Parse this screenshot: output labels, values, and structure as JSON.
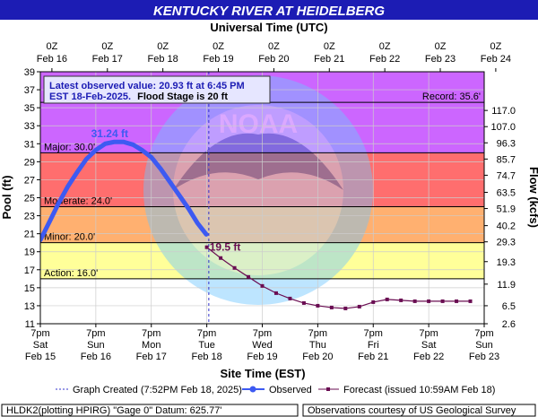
{
  "colors": {
    "title_bar": "#1c1cb4",
    "observed": "#3d5af2",
    "forecast": "#6a0d52",
    "major": "#cc66ff",
    "major_flood": "#ff6e6e",
    "moderate": "#ffb070",
    "minor": "#ffff99",
    "action": "#fafad2",
    "normal": "#ffffff"
  },
  "chart_data": {
    "type": "line",
    "title": "KENTUCKY RIVER AT HEIDELBERG",
    "top_axis_title": "Universal Time (UTC)",
    "bottom_axis_title": "Site Time (EST)",
    "ylabel": "Pool (ft)",
    "y2label": "Flow (kcfs)",
    "ylim": [
      11,
      39
    ],
    "xlim": [
      "Feb 15 7pm",
      "Feb 23 7pm"
    ],
    "y_ticks": [
      "11",
      "13",
      "15",
      "17",
      "19",
      "21",
      "23",
      "25",
      "27",
      "29",
      "31",
      "33",
      "35",
      "37",
      "39"
    ],
    "flow_ticks": [
      {
        "stage": 11.0,
        "label": "2.6"
      },
      {
        "stage": 13.0,
        "label": "6.5"
      },
      {
        "stage": 15.4,
        "label": "11.9"
      },
      {
        "stage": 17.9,
        "label": "19.3"
      },
      {
        "stage": 20.1,
        "label": "29.3"
      },
      {
        "stage": 21.9,
        "label": "40.2"
      },
      {
        "stage": 23.8,
        "label": "51.9"
      },
      {
        "stage": 25.6,
        "label": "63.5"
      },
      {
        "stage": 27.5,
        "label": "74.7"
      },
      {
        "stage": 29.3,
        "label": "85.7"
      },
      {
        "stage": 31.1,
        "label": "96.3"
      },
      {
        "stage": 32.9,
        "label": "107.0"
      },
      {
        "stage": 34.7,
        "label": "117.0"
      }
    ],
    "top_ticks": [
      {
        "line1": "0Z",
        "line2": "Feb 16"
      },
      {
        "line1": "0Z",
        "line2": "Feb 17"
      },
      {
        "line1": "0Z",
        "line2": "Feb 18"
      },
      {
        "line1": "0Z",
        "line2": "Feb 19"
      },
      {
        "line1": "0Z",
        "line2": "Feb 20"
      },
      {
        "line1": "0Z",
        "line2": "Feb 21"
      },
      {
        "line1": "0Z",
        "line2": "Feb 22"
      },
      {
        "line1": "0Z",
        "line2": "Feb 23"
      },
      {
        "line1": "0Z",
        "line2": "Feb 24"
      }
    ],
    "bottom_ticks": [
      {
        "line1": "7pm",
        "line2": "Sat",
        "line3": "Feb 15"
      },
      {
        "line1": "7pm",
        "line2": "Sun",
        "line3": "Feb 16"
      },
      {
        "line1": "7pm",
        "line2": "Mon",
        "line3": "Feb 17"
      },
      {
        "line1": "7pm",
        "line2": "Tue",
        "line3": "Feb 18"
      },
      {
        "line1": "7pm",
        "line2": "Wed",
        "line3": "Feb 19"
      },
      {
        "line1": "7pm",
        "line2": "Thu",
        "line3": "Feb 20"
      },
      {
        "line1": "7pm",
        "line2": "Fri",
        "line3": "Feb 21"
      },
      {
        "line1": "7pm",
        "line2": "Sat",
        "line3": "Feb 22"
      },
      {
        "line1": "7pm",
        "line2": "Sun",
        "line3": "Feb 23"
      }
    ],
    "flood_categories": [
      {
        "name": "Major",
        "label": "Major: 30.0'",
        "from": 30.0,
        "to": 39.0,
        "color": "#ff6e6e"
      },
      {
        "name": "Moderate",
        "label": "Moderate: 24.0'",
        "from": 24.0,
        "to": 30.0,
        "color": "#ffb070"
      },
      {
        "name": "Minor",
        "label": "Minor: 20.0'",
        "from": 20.0,
        "to": 24.0,
        "color": "#ffff99"
      },
      {
        "name": "Action",
        "label": "Action: 16.0'",
        "from": 16.0,
        "to": 20.0,
        "color": "#fafad2"
      }
    ],
    "record": {
      "label": "Record: 35.6'",
      "value": 35.6,
      "color": "#cc66ff"
    },
    "info_box": {
      "line1": "Latest observed value: 20.93 ft at 6:45 PM",
      "line2a": "EST 18-Feb-2025.",
      "line2b": "Flood Stage is 20 ft"
    },
    "peak_label": "31.24 ft",
    "peak": {
      "x": "Feb 16 2:00pm",
      "y": 31.24
    },
    "forecast_start_label": "19.5 ft",
    "forecast_start": {
      "x": "Feb 18 7pm",
      "y": 19.5
    },
    "graph_created_x": "Feb 18 7:52pm",
    "series": [
      {
        "name": "Observed",
        "x_days_from_feb15_7pm": [
          0.0,
          0.17,
          0.33,
          0.5,
          0.67,
          0.83,
          1.0,
          1.17,
          1.33,
          1.5,
          1.67,
          1.83,
          2.0,
          2.17,
          2.33,
          2.5,
          2.67,
          2.83,
          2.99
        ],
        "values": [
          20.3,
          22.4,
          24.4,
          26.3,
          27.9,
          29.3,
          30.3,
          31.0,
          31.2,
          31.2,
          30.9,
          30.3,
          29.5,
          28.2,
          26.8,
          25.3,
          23.8,
          22.2,
          20.93
        ]
      },
      {
        "name": "Forecast",
        "x_days_from_feb15_7pm": [
          3.0,
          3.25,
          3.5,
          3.75,
          4.0,
          4.25,
          4.5,
          4.75,
          5.0,
          5.25,
          5.5,
          5.75,
          6.0,
          6.25,
          6.5,
          6.75,
          7.0,
          7.25,
          7.5,
          7.75
        ],
        "values": [
          19.5,
          18.3,
          17.2,
          16.2,
          15.2,
          14.4,
          13.8,
          13.3,
          13.0,
          12.8,
          12.7,
          12.9,
          13.4,
          13.7,
          13.6,
          13.5,
          13.5,
          13.5,
          13.5,
          13.5
        ]
      }
    ]
  },
  "legend": {
    "graph_created": "Graph Created (7:52PM Feb 18, 2025)",
    "observed": "Observed",
    "forecast": "Forecast (issued 10:59AM Feb 18)"
  },
  "footer": {
    "left": "HLDK2(plotting HPIRG) \"Gage 0\" Datum: 625.77'",
    "right": "Observations courtesy of US Geological Survey"
  }
}
